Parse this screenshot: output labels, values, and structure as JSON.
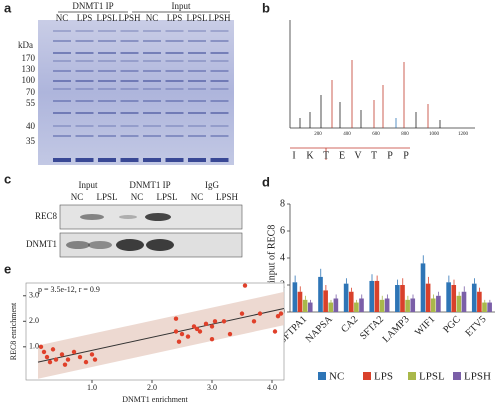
{
  "panels": [
    "a",
    "b",
    "c",
    "d",
    "e"
  ],
  "gel": {
    "unit": "kDa",
    "groups": [
      "DNMT1 IP",
      "Input"
    ],
    "lanes": [
      "NC",
      "LPS",
      "LPSL",
      "LPSH",
      "NC",
      "LPS",
      "LPSL",
      "LPSH"
    ],
    "markers": [
      "170",
      "130",
      "100",
      "70",
      "55",
      "40",
      "35"
    ]
  },
  "spectrum": {
    "xticks": [
      "200",
      "400",
      "600",
      "800",
      "1000",
      "1200"
    ],
    "sequence": [
      "I",
      "K",
      "T",
      "E",
      "V",
      "T",
      "P",
      "P"
    ]
  },
  "blot": {
    "groups": [
      "Input",
      "DNMT1 IP",
      "IgG"
    ],
    "lanes": [
      "NC",
      "LPSL",
      "NC",
      "LPSL",
      "NC",
      "LPSH"
    ],
    "rows": [
      "REC8",
      "DNMT1"
    ]
  },
  "chart_data": [
    {
      "type": "bar",
      "ylabel": "%input of REC8",
      "categories": [
        "SFTPA1",
        "NAPSA",
        "CA2",
        "SFTA2",
        "LAMP3",
        "WIF1",
        "PGC",
        "ETV5"
      ],
      "ylim": [
        0,
        8
      ],
      "yticks": [
        0,
        2,
        4,
        6,
        8
      ],
      "legend": "bottom",
      "series": [
        {
          "name": "NC",
          "color": "#2e75b6",
          "values": [
            2.2,
            2.6,
            2.1,
            2.3,
            2.0,
            3.6,
            2.2,
            2.1
          ],
          "errors": [
            0.5,
            0.6,
            0.4,
            0.5,
            0.4,
            0.6,
            0.5,
            0.4
          ]
        },
        {
          "name": "LPS",
          "color": "#d9412b",
          "values": [
            1.5,
            1.6,
            1.5,
            2.3,
            2.0,
            2.1,
            2.0,
            1.5
          ],
          "errors": [
            0.4,
            0.4,
            0.3,
            0.4,
            0.5,
            0.5,
            0.4,
            0.3
          ]
        },
        {
          "name": "LPSL",
          "color": "#a9b84a",
          "values": [
            0.9,
            0.7,
            0.7,
            0.9,
            0.9,
            1.0,
            1.2,
            0.7
          ],
          "errors": [
            0.3,
            0.2,
            0.2,
            0.3,
            0.3,
            0.3,
            0.3,
            0.2
          ]
        },
        {
          "name": "LPSH",
          "color": "#7b5fa8",
          "values": [
            0.7,
            1.0,
            1.0,
            1.0,
            1.0,
            1.2,
            1.5,
            0.7
          ],
          "errors": [
            0.2,
            0.3,
            0.3,
            0.3,
            0.3,
            0.3,
            0.4,
            0.2
          ]
        }
      ]
    },
    {
      "type": "scatter",
      "annotation": "p = 3.5e-12, r = 0.9",
      "xlabel": "DNMT1 enrichment",
      "ylabel": "REC8 enrichment",
      "color": "#e0402a",
      "x": [
        0.15,
        0.2,
        0.25,
        0.3,
        0.35,
        0.4,
        0.5,
        0.55,
        0.6,
        0.7,
        0.8,
        0.9,
        1.0,
        1.05,
        2.4,
        2.4,
        2.45,
        2.5,
        2.6,
        2.7,
        2.75,
        2.8,
        2.9,
        3.0,
        3.0,
        3.05,
        3.2,
        3.3,
        3.5,
        3.55,
        3.7,
        3.8,
        4.05,
        4.1,
        4.15
      ],
      "y": [
        1.0,
        0.8,
        0.6,
        0.4,
        0.9,
        0.5,
        0.7,
        0.3,
        0.5,
        0.8,
        0.6,
        0.4,
        0.7,
        0.5,
        1.6,
        2.1,
        1.2,
        1.5,
        1.4,
        1.8,
        1.7,
        1.6,
        1.9,
        1.8,
        1.3,
        2.0,
        2.0,
        1.5,
        2.3,
        3.4,
        2.0,
        2.3,
        1.6,
        2.2,
        2.3
      ],
      "trend": {
        "x": [
          0.1,
          4.2
        ],
        "y": [
          0.4,
          2.5
        ],
        "band": 0.65
      },
      "xlim": [
        -0.1,
        4.2
      ],
      "ylim": [
        -0.3,
        3.5
      ],
      "xticks": [
        {
          "value": 1,
          "label": "1.0"
        },
        {
          "value": 2,
          "label": "2.0"
        },
        {
          "value": 3,
          "label": "3.0"
        },
        {
          "value": 4,
          "label": "4.0"
        }
      ],
      "yticks": [
        {
          "value": 1,
          "label": "1.0"
        },
        {
          "value": 2,
          "label": "2.0"
        },
        {
          "value": 3,
          "label": "3.0"
        }
      ]
    }
  ]
}
